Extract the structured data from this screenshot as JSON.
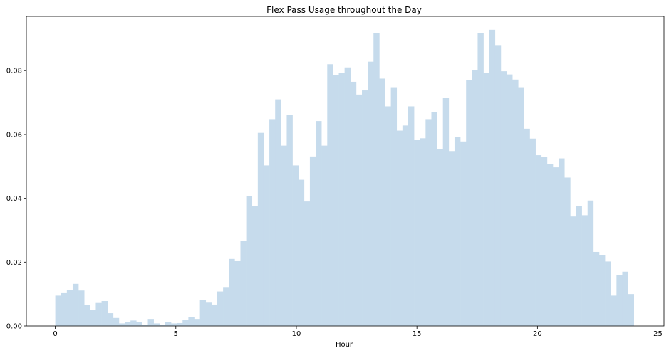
{
  "chart_data": {
    "type": "bar",
    "title": "Flex Pass Usage throughout the Day",
    "xlabel": "Hour",
    "ylabel": "",
    "bar_color": "#c6dbec",
    "xlim": [
      -1.2,
      25.25
    ],
    "ylim": [
      0,
      0.097
    ],
    "xticks": [
      0,
      5,
      10,
      15,
      20,
      25
    ],
    "yticks": [
      0.0,
      0.02,
      0.04,
      0.06,
      0.08
    ],
    "ytick_labels": [
      "0.00",
      "0.02",
      "0.04",
      "0.06",
      "0.08"
    ],
    "xtick_labels": [
      "0",
      "5",
      "10",
      "15",
      "20",
      "25"
    ],
    "grid": false,
    "bin_start": 0,
    "bin_width": 0.24,
    "values": [
      0.0095,
      0.0105,
      0.0113,
      0.0132,
      0.0111,
      0.0065,
      0.005,
      0.0072,
      0.0078,
      0.004,
      0.0025,
      0.0008,
      0.0012,
      0.0017,
      0.0012,
      0.0003,
      0.0022,
      0.0008,
      0.0003,
      0.0013,
      0.0008,
      0.0009,
      0.0018,
      0.0027,
      0.0022,
      0.0082,
      0.0073,
      0.0067,
      0.0108,
      0.0122,
      0.021,
      0.0203,
      0.0267,
      0.0408,
      0.0375,
      0.0605,
      0.0503,
      0.0648,
      0.071,
      0.0565,
      0.0661,
      0.0503,
      0.0458,
      0.039,
      0.0531,
      0.0642,
      0.0565,
      0.082,
      0.0785,
      0.0792,
      0.081,
      0.0765,
      0.0725,
      0.0738,
      0.0828,
      0.0918,
      0.0775,
      0.0688,
      0.0748,
      0.0612,
      0.0628,
      0.0688,
      0.0582,
      0.0588,
      0.0648,
      0.067,
      0.0555,
      0.0715,
      0.0548,
      0.0592,
      0.0578,
      0.077,
      0.0802,
      0.0918,
      0.0792,
      0.0928,
      0.088,
      0.0798,
      0.0788,
      0.0772,
      0.0748,
      0.0618,
      0.0587,
      0.0535,
      0.053,
      0.0508,
      0.0497,
      0.0525,
      0.0465,
      0.0343,
      0.0375,
      0.0347,
      0.0393,
      0.0232,
      0.0223,
      0.0202,
      0.0095,
      0.016,
      0.017,
      0.01
    ]
  }
}
